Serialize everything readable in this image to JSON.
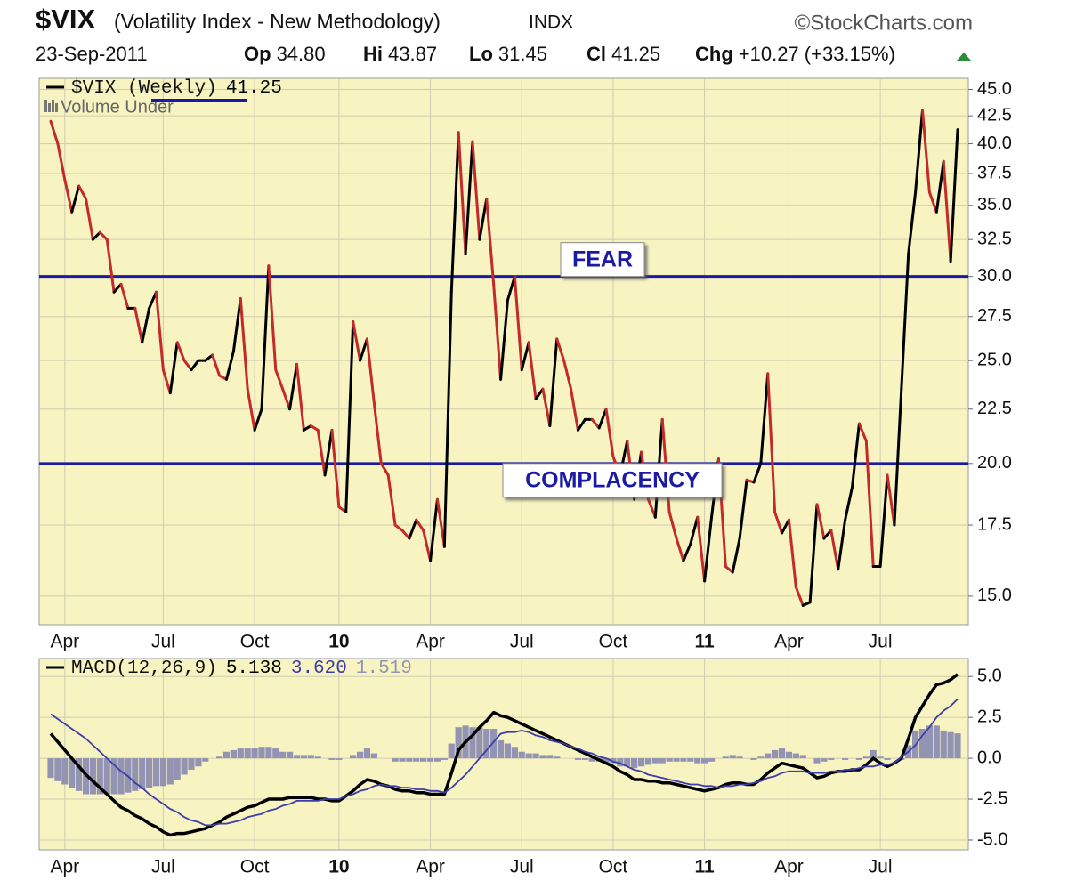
{
  "chart_data": [
    {
      "type": "line",
      "title": "$VIX",
      "subtitle": "(Volatility Index - New Methodology)",
      "exchange": "INDX",
      "source": "©StockCharts.com",
      "date": "23-Sep-2011",
      "quote": [
        {
          "label": "Op",
          "value": "34.80"
        },
        {
          "label": "Hi",
          "value": "43.87"
        },
        {
          "label": "Lo",
          "value": "31.45"
        },
        {
          "label": "Cl",
          "value": "41.25"
        },
        {
          "label": "Chg",
          "value": "+10.27 (+33.15%)"
        }
      ],
      "legend_note": "Volume Under",
      "categories": [
        null,
        null,
        "Apr",
        null,
        null,
        null,
        null,
        null,
        null,
        null,
        null,
        null,
        null,
        null,
        null,
        null,
        "Jul",
        null,
        null,
        null,
        null,
        null,
        null,
        null,
        null,
        null,
        null,
        null,
        null,
        "Oct",
        null,
        null,
        null,
        null,
        null,
        null,
        null,
        null,
        null,
        null,
        null,
        "10",
        null,
        null,
        null,
        null,
        null,
        null,
        null,
        null,
        null,
        null,
        null,
        null,
        "Apr",
        null,
        null,
        null,
        null,
        null,
        null,
        null,
        null,
        null,
        null,
        null,
        null,
        "Jul",
        null,
        null,
        null,
        null,
        null,
        null,
        null,
        null,
        null,
        null,
        null,
        null,
        "Oct",
        null,
        null,
        null,
        null,
        null,
        null,
        null,
        null,
        null,
        null,
        null,
        null,
        "11",
        null,
        null,
        null,
        null,
        null,
        null,
        null,
        null,
        null,
        null,
        null,
        "Apr",
        null,
        null,
        null,
        null,
        null,
        null,
        null,
        null,
        null,
        null,
        null,
        null,
        "Jul",
        null,
        null,
        null,
        null,
        null,
        null,
        null,
        null,
        null,
        null,
        null
      ],
      "series": [
        {
          "name": "$VIX (Weekly)",
          "readout": "41.25",
          "up_color": "#000000",
          "down_color": "#c42a2a",
          "values": [
            42,
            40,
            37,
            34.5,
            36.5,
            35.5,
            32.5,
            33,
            32.5,
            29,
            29.5,
            28,
            28,
            26,
            28,
            29,
            24.5,
            23.3,
            26,
            25,
            24.5,
            25,
            25,
            25.3,
            24.2,
            24,
            25.5,
            28.6,
            23.5,
            21.5,
            22.5,
            30.7,
            24.5,
            23.5,
            22.5,
            24.8,
            21.5,
            21.7,
            21.5,
            19.5,
            21.5,
            18.2,
            18,
            27.2,
            25,
            26.2,
            22.8,
            20,
            19.5,
            17.5,
            17.3,
            17,
            17.7,
            17.3,
            16.2,
            18.5,
            16.7,
            29,
            41,
            31.5,
            40.2,
            32.5,
            35.5,
            29.5,
            24,
            28.5,
            30,
            24.5,
            26,
            23,
            23.5,
            21.7,
            26.2,
            25,
            23.5,
            21.5,
            22,
            22,
            21.6,
            22.5,
            20.3,
            19.5,
            21,
            18.5,
            20.5,
            18.5,
            17.8,
            22,
            18,
            17,
            16.2,
            16.8,
            17.8,
            15.5,
            17.8,
            20.2,
            16,
            15.8,
            17,
            19.3,
            19.2,
            20,
            24.3,
            18,
            17.2,
            17.7,
            15.3,
            14.7,
            14.8,
            18.3,
            17,
            17.3,
            15.9,
            17.7,
            19,
            21.8,
            21,
            16,
            16,
            19.5,
            17.5,
            23.5,
            31.5,
            36,
            43,
            36,
            34.5,
            38.5,
            31,
            41.25
          ]
        }
      ],
      "annotations": [
        {
          "text": "FEAR",
          "value": 30,
          "color": "#1a1aa6"
        },
        {
          "text": "COMPLACENCY",
          "value": 20,
          "color": "#1a1aa6"
        }
      ],
      "log_scale": true,
      "grid": true,
      "ylim": [
        14.1,
        46.1
      ],
      "yticks": [
        {
          "value": 45,
          "label": "45.0"
        },
        {
          "value": 42.5,
          "label": "42.5"
        },
        {
          "value": 40,
          "label": "40.0"
        },
        {
          "value": 37.5,
          "label": "37.5"
        },
        {
          "value": 35,
          "label": "35.0"
        },
        {
          "value": 32.5,
          "label": "32.5"
        },
        {
          "value": 30,
          "label": "30.0"
        },
        {
          "value": 27.5,
          "label": "27.5"
        },
        {
          "value": 25,
          "label": "25.0"
        },
        {
          "value": 22.5,
          "label": "22.5"
        },
        {
          "value": 20,
          "label": "20.0"
        },
        {
          "value": 17.5,
          "label": "17.5"
        },
        {
          "value": 15,
          "label": "15.0"
        }
      ]
    },
    {
      "type": "line",
      "categories": [
        null,
        null,
        "Apr",
        null,
        null,
        null,
        null,
        null,
        null,
        null,
        null,
        null,
        null,
        null,
        null,
        null,
        "Jul",
        null,
        null,
        null,
        null,
        null,
        null,
        null,
        null,
        null,
        null,
        null,
        null,
        "Oct",
        null,
        null,
        null,
        null,
        null,
        null,
        null,
        null,
        null,
        null,
        null,
        "10",
        null,
        null,
        null,
        null,
        null,
        null,
        null,
        null,
        null,
        null,
        null,
        null,
        "Apr",
        null,
        null,
        null,
        null,
        null,
        null,
        null,
        null,
        null,
        null,
        null,
        null,
        "Jul",
        null,
        null,
        null,
        null,
        null,
        null,
        null,
        null,
        null,
        null,
        null,
        null,
        "Oct",
        null,
        null,
        null,
        null,
        null,
        null,
        null,
        null,
        null,
        null,
        null,
        null,
        "11",
        null,
        null,
        null,
        null,
        null,
        null,
        null,
        null,
        null,
        null,
        null,
        "Apr",
        null,
        null,
        null,
        null,
        null,
        null,
        null,
        null,
        null,
        null,
        null,
        null,
        "Jul",
        null,
        null,
        null,
        null,
        null,
        null,
        null,
        null,
        null,
        null,
        null
      ],
      "series": [
        {
          "name": "MACD(12,26,9)",
          "readout": "5.138",
          "color": "#000000",
          "values": [
            1.5,
            1.0,
            0.5,
            0.0,
            -0.5,
            -1.0,
            -1.4,
            -1.8,
            -2.2,
            -2.6,
            -3.0,
            -3.2,
            -3.5,
            -3.7,
            -4.0,
            -4.2,
            -4.5,
            -4.7,
            -4.6,
            -4.6,
            -4.5,
            -4.4,
            -4.3,
            -4.1,
            -3.9,
            -3.6,
            -3.4,
            -3.2,
            -3.0,
            -2.9,
            -2.7,
            -2.5,
            -2.5,
            -2.5,
            -2.4,
            -2.4,
            -2.4,
            -2.4,
            -2.5,
            -2.5,
            -2.6,
            -2.6,
            -2.3,
            -2.0,
            -1.6,
            -1.3,
            -1.4,
            -1.6,
            -1.7,
            -1.9,
            -2.0,
            -2.0,
            -2.1,
            -2.1,
            -2.2,
            -2.2,
            -2.2,
            -0.9,
            0.5,
            1.0,
            1.4,
            1.9,
            2.3,
            2.8,
            2.6,
            2.5,
            2.3,
            2.1,
            1.9,
            1.7,
            1.5,
            1.3,
            1.1,
            0.9,
            0.7,
            0.5,
            0.3,
            0.1,
            -0.1,
            -0.3,
            -0.5,
            -0.8,
            -1.0,
            -1.3,
            -1.3,
            -1.4,
            -1.4,
            -1.5,
            -1.5,
            -1.6,
            -1.7,
            -1.8,
            -1.9,
            -2.0,
            -1.9,
            -1.8,
            -1.6,
            -1.5,
            -1.5,
            -1.6,
            -1.6,
            -1.3,
            -0.9,
            -0.6,
            -0.3,
            -0.4,
            -0.5,
            -0.6,
            -0.9,
            -1.2,
            -1.1,
            -0.9,
            -0.8,
            -0.8,
            -0.7,
            -0.7,
            -0.4,
            0.0,
            -0.3,
            -0.5,
            -0.3,
            0.0,
            1.2,
            2.5,
            3.2,
            3.9,
            4.5,
            4.6,
            4.8,
            5.138
          ]
        },
        {
          "readout": "3.620",
          "color": "#3c3caa",
          "values": [
            2.7,
            2.4,
            2.1,
            1.8,
            1.5,
            1.2,
            0.8,
            0.4,
            0.0,
            -0.4,
            -0.8,
            -1.1,
            -1.5,
            -1.8,
            -2.2,
            -2.5,
            -2.8,
            -3.1,
            -3.3,
            -3.6,
            -3.8,
            -3.9,
            -4.1,
            -4.1,
            -4.0,
            -4.0,
            -3.9,
            -3.8,
            -3.6,
            -3.5,
            -3.4,
            -3.2,
            -3.1,
            -2.9,
            -2.8,
            -2.6,
            -2.6,
            -2.6,
            -2.6,
            -2.5,
            -2.5,
            -2.5,
            -2.3,
            -2.2,
            -2.0,
            -1.9,
            -1.7,
            -1.6,
            -1.7,
            -1.7,
            -1.8,
            -1.8,
            -1.9,
            -1.9,
            -2.0,
            -2.0,
            -2.1,
            -1.8,
            -1.4,
            -1.0,
            -0.5,
            0.0,
            0.5,
            1.0,
            1.5,
            1.6,
            1.6,
            1.7,
            1.6,
            1.4,
            1.3,
            1.1,
            1.0,
            0.9,
            0.7,
            0.6,
            0.4,
            0.3,
            0.1,
            0.0,
            -0.2,
            -0.3,
            -0.5,
            -0.7,
            -0.8,
            -1.0,
            -1.1,
            -1.2,
            -1.3,
            -1.4,
            -1.5,
            -1.6,
            -1.6,
            -1.7,
            -1.7,
            -1.8,
            -1.7,
            -1.7,
            -1.6,
            -1.6,
            -1.5,
            -1.4,
            -1.2,
            -1.1,
            -0.9,
            -0.8,
            -0.8,
            -0.8,
            -0.9,
            -0.9,
            -0.9,
            -0.8,
            -0.8,
            -0.7,
            -0.7,
            -0.6,
            -0.5,
            -0.5,
            -0.4,
            -0.4,
            -0.3,
            0.1,
            0.4,
            0.8,
            1.4,
            1.9,
            2.5,
            2.9,
            3.2,
            3.62
          ]
        },
        {
          "readout": "1.519",
          "color": "#9393b3",
          "style": "bar",
          "values": [
            -1.2,
            -1.4,
            -1.6,
            -1.8,
            -2.0,
            -2.2,
            -2.2,
            -2.2,
            -2.2,
            -2.2,
            -2.2,
            -2.1,
            -2.0,
            -1.9,
            -1.8,
            -1.7,
            -1.7,
            -1.6,
            -1.3,
            -1.0,
            -0.7,
            -0.5,
            -0.2,
            0.0,
            0.1,
            0.4,
            0.5,
            0.6,
            0.6,
            0.6,
            0.7,
            0.7,
            0.6,
            0.4,
            0.4,
            0.2,
            0.2,
            0.2,
            0.1,
            0.0,
            -0.1,
            -0.1,
            0.0,
            0.2,
            0.4,
            0.6,
            0.3,
            0.0,
            0.0,
            -0.2,
            -0.2,
            -0.2,
            -0.2,
            -0.2,
            -0.2,
            -0.2,
            -0.1,
            0.9,
            1.9,
            2.0,
            1.9,
            1.9,
            1.8,
            1.8,
            1.1,
            0.9,
            0.7,
            0.4,
            0.3,
            0.3,
            0.2,
            0.2,
            0.1,
            0.0,
            0.0,
            -0.1,
            -0.1,
            -0.2,
            -0.2,
            -0.3,
            -0.3,
            -0.5,
            -0.5,
            -0.6,
            -0.5,
            -0.4,
            -0.3,
            -0.3,
            -0.2,
            -0.2,
            -0.2,
            -0.2,
            -0.3,
            -0.3,
            -0.2,
            0.0,
            0.1,
            0.2,
            0.1,
            0.0,
            -0.1,
            0.1,
            0.3,
            0.5,
            0.6,
            0.4,
            0.3,
            0.2,
            0.0,
            -0.3,
            -0.2,
            -0.1,
            0.0,
            -0.1,
            0.0,
            -0.1,
            0.1,
            0.5,
            0.1,
            -0.1,
            0.0,
            -0.1,
            0.8,
            1.7,
            1.8,
            2.0,
            2.0,
            1.7,
            1.6,
            1.519
          ]
        }
      ],
      "grid": true,
      "ylim": [
        -5.6,
        6.1
      ],
      "yticks": [
        {
          "value": 5,
          "label": "5.0"
        },
        {
          "value": 2.5,
          "label": "2.5"
        },
        {
          "value": 0,
          "label": "0.0"
        },
        {
          "value": -2.5,
          "label": "-2.5"
        },
        {
          "value": -5,
          "label": "-5.0"
        }
      ]
    }
  ]
}
